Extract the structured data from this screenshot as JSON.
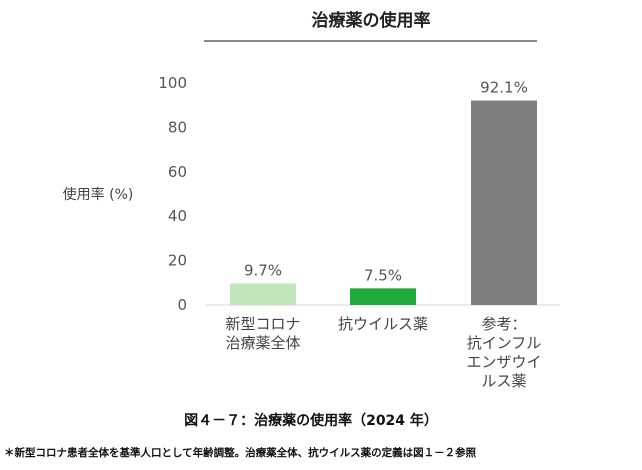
{
  "chart_data": {
    "type": "bar",
    "title": "治療薬の使用率",
    "ylabel": "使用率 (%)",
    "ylim": [
      0,
      100
    ],
    "yticks": [
      0,
      20,
      40,
      60,
      80,
      100
    ],
    "categories": [
      [
        "新型コロナ",
        "治療薬全体"
      ],
      [
        "抗ウイルス薬"
      ],
      [
        "参考：",
        "抗インフル",
        "エンザウイ",
        "ルス薬"
      ]
    ],
    "values": [
      9.7,
      7.5,
      92.1
    ],
    "value_labels": [
      "9.7%",
      "7.5%",
      "92.1%"
    ],
    "colors": [
      "#c3e6bd",
      "#20ab3c",
      "#7f7f7f"
    ],
    "grid": false,
    "legend": "none"
  },
  "caption": "図４－７：治療薬の使用率（2024 年）",
  "footnote": "＊新型コロナ患者全体を基準人口として年齢調整。治療薬全体、抗ウイルス薬の定義は図１－２参照"
}
